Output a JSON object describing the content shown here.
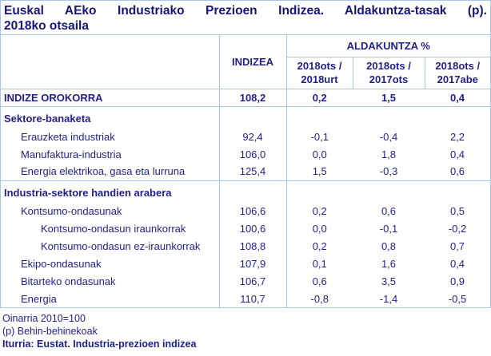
{
  "title": {
    "full": "Euskal AEko Industriako Prezioen Indizea. Aldakuntza-tasak (p). 2018ko otsaila",
    "line1": "Euskal AEko Industriako Prezioen Indizea. Aldakuntza-tasak (p).",
    "line2": "2018ko otsaila"
  },
  "chart_data": {
    "type": "table",
    "title": "Euskal AEko Industriako Prezioen Indizea. Aldakuntza-tasak (p). 2018ko otsaila",
    "index_column_header": "INDIZEA",
    "change_group_header": "ALDAKUNTZA %",
    "change_column_headers": [
      "2018ots / 2018urt",
      "2018ots / 2017ots",
      "2018ots / 2017abe"
    ],
    "base_note": "Oinarria 2010=100",
    "rows": [
      {
        "label": "INDIZE OROKORRA",
        "style": "total",
        "indent": 0,
        "values": [
          "108,2",
          "0,2",
          "1,5",
          "0,4"
        ]
      },
      {
        "label": "Sektore-banaketa",
        "style": "section",
        "indent": 0,
        "values": [
          "",
          "",
          "",
          ""
        ]
      },
      {
        "label": "Erauzketa industriak",
        "style": "data",
        "indent": 1,
        "values": [
          "92,4",
          "-0,1",
          "-0,4",
          "2,2"
        ]
      },
      {
        "label": "Manufaktura-industria",
        "style": "data",
        "indent": 1,
        "values": [
          "106,0",
          "0,0",
          "1,8",
          "0,4"
        ]
      },
      {
        "label": "Energia elektrikoa, gasa eta lurruna",
        "style": "data",
        "indent": 1,
        "values": [
          "125,4",
          "1,5",
          "-0,3",
          "0,6"
        ]
      },
      {
        "label": "Industria-sektore handien arabera",
        "style": "section",
        "indent": 0,
        "values": [
          "",
          "",
          "",
          ""
        ]
      },
      {
        "label": "Kontsumo-ondasunak",
        "style": "data",
        "indent": 1,
        "values": [
          "106,6",
          "0,2",
          "0,6",
          "0,5"
        ]
      },
      {
        "label": "Kontsumo-ondasun iraunkorrak",
        "style": "data",
        "indent": 2,
        "values": [
          "100,6",
          "0,0",
          "-0,1",
          "-0,2"
        ]
      },
      {
        "label": "Kontsumo-ondasun ez-iraunkorrak",
        "style": "data",
        "indent": 2,
        "values": [
          "108,8",
          "0,2",
          "0,8",
          "0,7"
        ]
      },
      {
        "label": "Ekipo-ondasunak",
        "style": "data",
        "indent": 1,
        "values": [
          "107,9",
          "0,1",
          "1,6",
          "0,4"
        ]
      },
      {
        "label": "Bitarteko ondasunak",
        "style": "data",
        "indent": 1,
        "values": [
          "106,7",
          "0,6",
          "3,5",
          "0,9"
        ]
      },
      {
        "label": "Energia",
        "style": "data",
        "indent": 1,
        "values": [
          "110,7",
          "-0,8",
          "-1,4",
          "-0,5"
        ]
      }
    ]
  },
  "footnotes": {
    "line1": "Oinarria 2010=100",
    "line2": "(p) Behin-behinekoak",
    "source": "Iturria: Eustat. Industria-prezioen indizea"
  },
  "colors": {
    "text_navy": "#1f1f8b",
    "title_navy": "#161678",
    "border_blue": "#a5c8e8",
    "background": "#ffffff"
  }
}
